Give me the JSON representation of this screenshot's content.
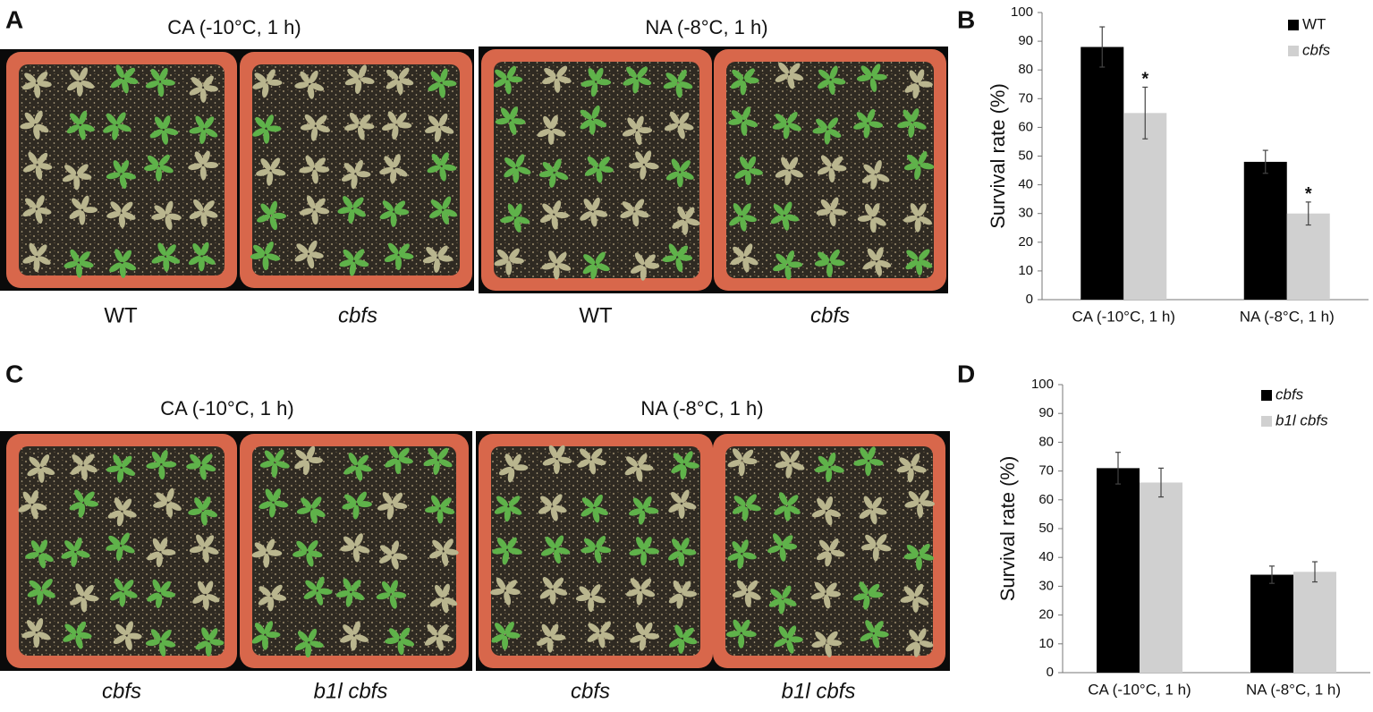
{
  "panel_labels": [
    "A",
    "B",
    "C",
    "D"
  ],
  "photo_panels": [
    {
      "conditions": [
        "CA (-10°C, 1 h)",
        "NA (-8°C, 1 h)"
      ],
      "genotypes": [
        "WT",
        "cbfs",
        "WT",
        "cbfs"
      ]
    },
    {
      "conditions": [
        "CA (-10°C, 1 h)",
        "NA (-8°C, 1 h)"
      ],
      "genotypes": [
        "cbfs",
        "b1l cbfs",
        "cbfs",
        "b1l cbfs"
      ]
    }
  ],
  "chart_data": [
    {
      "type": "bar",
      "ylabel": "Survival rate (%)",
      "categories": [
        "CA (-10°C, 1 h)",
        "NA (-8°C, 1 h)"
      ],
      "series": [
        {
          "name": "WT",
          "color": "#000000",
          "italic": false,
          "values": [
            88,
            48
          ],
          "errors": [
            7,
            4
          ]
        },
        {
          "name": "cbfs",
          "color": "#d0d0d0",
          "italic": true,
          "values": [
            65,
            30
          ],
          "errors": [
            9,
            4
          ],
          "markers": [
            "*",
            "*"
          ]
        }
      ],
      "ylim": [
        0,
        100
      ],
      "yticks": [
        0,
        10,
        20,
        30,
        40,
        50,
        60,
        70,
        80,
        90,
        100
      ],
      "legend": "upper right",
      "grid": false
    },
    {
      "type": "bar",
      "ylabel": "Survival rate (%)",
      "categories": [
        "CA (-10°C, 1 h)",
        "NA (-8°C, 1 h)"
      ],
      "series": [
        {
          "name": "cbfs",
          "color": "#000000",
          "italic": true,
          "values": [
            71,
            34
          ],
          "errors": [
            5.5,
            3
          ]
        },
        {
          "name": "b1l cbfs",
          "color": "#d0d0d0",
          "italic": true,
          "values": [
            66,
            35
          ],
          "errors": [
            5,
            3.5
          ]
        }
      ],
      "ylim": [
        0,
        100
      ],
      "yticks": [
        0,
        10,
        20,
        30,
        40,
        50,
        60,
        70,
        80,
        90,
        100
      ],
      "legend": "upper right",
      "grid": false
    }
  ]
}
